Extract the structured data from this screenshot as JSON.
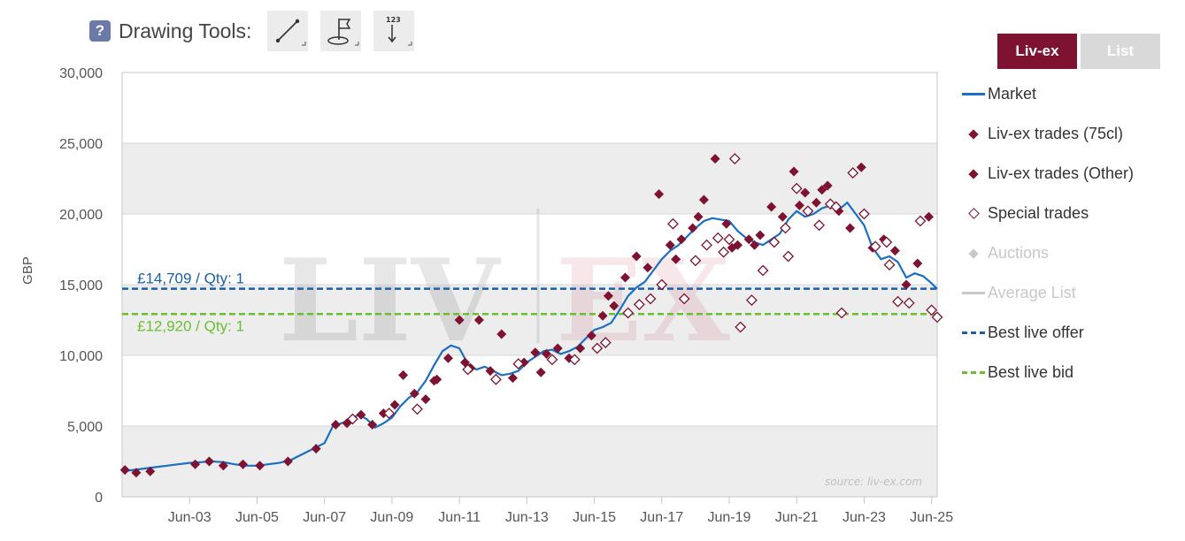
{
  "toolbar": {
    "help_label": "?",
    "label": "Drawing Tools:",
    "tools": [
      {
        "icon": "line-tool-icon"
      },
      {
        "icon": "flag-tool-icon"
      },
      {
        "icon": "label-tool-icon",
        "text": "123"
      }
    ]
  },
  "view_toggle": {
    "active": "Liv-ex",
    "inactive": "List"
  },
  "legend": [
    {
      "label": "Market",
      "symbol": "line",
      "color": "#1a6fc4",
      "enabled": true
    },
    {
      "label": "Liv-ex trades (75cl)",
      "symbol": "diamond-filled",
      "color": "#7d1330",
      "enabled": true
    },
    {
      "label": "Liv-ex trades (Other)",
      "symbol": "diamond-filled",
      "color": "#7d1330",
      "enabled": true
    },
    {
      "label": "Special trades",
      "symbol": "diamond-hollow",
      "color": "#7d1330",
      "enabled": true
    },
    {
      "label": "Auctions",
      "symbol": "diamond-grey",
      "color": "#c8c8c8",
      "enabled": false
    },
    {
      "label": "Average List",
      "symbol": "line",
      "color": "#c8c8c8",
      "enabled": false
    },
    {
      "label": "Best live offer",
      "symbol": "dash",
      "color": "#1a5fa8",
      "enabled": true
    },
    {
      "label": "Best live bid",
      "symbol": "dash",
      "color": "#6abf2e",
      "enabled": true
    }
  ],
  "chart_data": {
    "type": "line",
    "ylabel": "GBP",
    "ylim": [
      0,
      30000
    ],
    "yticks": [
      0,
      5000,
      10000,
      15000,
      20000,
      25000,
      30000
    ],
    "ytick_labels": [
      "0",
      "5,000",
      "10,000",
      "15,000",
      "20,000",
      "25,000",
      "30,000"
    ],
    "xlim": [
      "2001-06",
      "2025-08"
    ],
    "xticks": [
      "2003-06",
      "2005-06",
      "2007-06",
      "2009-06",
      "2011-06",
      "2013-06",
      "2015-06",
      "2017-06",
      "2019-06",
      "2021-06",
      "2023-06",
      "2025-06"
    ],
    "xtick_labels": [
      "Jun-03",
      "Jun-05",
      "Jun-07",
      "Jun-09",
      "Jun-11",
      "Jun-13",
      "Jun-15",
      "Jun-17",
      "Jun-19",
      "Jun-21",
      "Jun-23",
      "Jun-25"
    ],
    "grid": true,
    "watermark": "LIV-EX",
    "source_note": "source: liv-ex.com",
    "colors": {
      "market": "#1a6fc4",
      "trade": "#7d1330",
      "offer": "#1a5fa8",
      "bid": "#6abf2e"
    },
    "reference_lines": [
      {
        "name": "Best live offer",
        "value": 14709,
        "label": "£14,709 / Qty: 1",
        "color": "#1a5fa8"
      },
      {
        "name": "Best live bid",
        "value": 12920,
        "label": "£12,920 / Qty: 1",
        "color": "#6abf2e"
      }
    ],
    "market": {
      "x": [
        "2001-06",
        "2001-10",
        "2002-02",
        "2002-06",
        "2002-10",
        "2003-02",
        "2003-06",
        "2003-10",
        "2004-02",
        "2004-06",
        "2004-10",
        "2005-02",
        "2005-06",
        "2005-10",
        "2006-02",
        "2006-06",
        "2006-10",
        "2007-02",
        "2007-06",
        "2007-09",
        "2007-12",
        "2008-03",
        "2008-06",
        "2008-09",
        "2008-12",
        "2009-03",
        "2009-06",
        "2009-09",
        "2009-12",
        "2010-03",
        "2010-06",
        "2010-09",
        "2010-12",
        "2011-03",
        "2011-06",
        "2011-09",
        "2011-12",
        "2012-03",
        "2012-06",
        "2012-09",
        "2012-12",
        "2013-03",
        "2013-06",
        "2013-09",
        "2013-12",
        "2014-03",
        "2014-06",
        "2014-09",
        "2014-12",
        "2015-03",
        "2015-06",
        "2015-09",
        "2015-12",
        "2016-03",
        "2016-06",
        "2016-09",
        "2016-12",
        "2017-03",
        "2017-06",
        "2017-09",
        "2017-12",
        "2018-03",
        "2018-06",
        "2018-09",
        "2018-12",
        "2019-03",
        "2019-06",
        "2019-09",
        "2019-12",
        "2020-03",
        "2020-06",
        "2020-09",
        "2020-12",
        "2021-03",
        "2021-06",
        "2021-09",
        "2021-12",
        "2022-03",
        "2022-06",
        "2022-09",
        "2022-12",
        "2023-03",
        "2023-06",
        "2023-09",
        "2023-12",
        "2024-03",
        "2024-06",
        "2024-09",
        "2024-12",
        "2025-03",
        "2025-06",
        "2025-08"
      ],
      "values": [
        1800,
        1900,
        2000,
        2100,
        2200,
        2300,
        2400,
        2450,
        2500,
        2450,
        2300,
        2200,
        2200,
        2300,
        2400,
        2600,
        3000,
        3400,
        3800,
        5000,
        5200,
        5400,
        5800,
        5500,
        4900,
        5200,
        5600,
        6400,
        7000,
        7400,
        8200,
        9300,
        10300,
        10700,
        10500,
        9400,
        9000,
        9200,
        8900,
        8600,
        8700,
        8900,
        9500,
        9900,
        10300,
        10400,
        10100,
        10300,
        10600,
        11200,
        11800,
        12000,
        12300,
        13200,
        14200,
        14800,
        15200,
        16000,
        16800,
        17400,
        17800,
        18400,
        19000,
        19500,
        19700,
        19600,
        19500,
        18800,
        18300,
        18000,
        17800,
        18200,
        18600,
        19600,
        20200,
        19800,
        20000,
        20400,
        20600,
        20300,
        20800,
        20000,
        19200,
        17600,
        16800,
        17000,
        16600,
        15500,
        15800,
        15600,
        15100,
        14700
      ]
    },
    "trades_filled": {
      "x": [
        "2001-07",
        "2001-11",
        "2002-04",
        "2003-08",
        "2004-01",
        "2004-06",
        "2005-01",
        "2005-07",
        "2006-05",
        "2007-03",
        "2007-10",
        "2008-02",
        "2008-07",
        "2008-11",
        "2009-03",
        "2009-07",
        "2009-10",
        "2010-02",
        "2010-06",
        "2010-10",
        "2011-02",
        "2011-06",
        "2011-10",
        "2012-01",
        "2012-05",
        "2012-09",
        "2013-01",
        "2013-05",
        "2013-09",
        "2014-01",
        "2014-05",
        "2014-09",
        "2015-01",
        "2015-05",
        "2015-09",
        "2016-01",
        "2016-05",
        "2016-09",
        "2017-01",
        "2017-05",
        "2017-09",
        "2018-01",
        "2018-05",
        "2018-09",
        "2019-01",
        "2019-05",
        "2019-09",
        "2020-01",
        "2020-05",
        "2020-09",
        "2021-01",
        "2021-05",
        "2021-09",
        "2022-01",
        "2022-05",
        "2022-09",
        "2023-01",
        "2023-05",
        "2023-09",
        "2024-01",
        "2024-05",
        "2024-09",
        "2025-01",
        "2025-05",
        "2010-09",
        "2011-08",
        "2013-11",
        "2015-11",
        "2017-11",
        "2018-07",
        "2019-07",
        "2020-03",
        "2021-07",
        "2022-03"
      ],
      "values": [
        1900,
        1700,
        1800,
        2300,
        2500,
        2200,
        2300,
        2200,
        2500,
        3400,
        5100,
        5200,
        5800,
        5100,
        5900,
        6500,
        8600,
        7300,
        6900,
        8300,
        9800,
        12500,
        9100,
        12500,
        8900,
        11500,
        8400,
        9500,
        10200,
        10100,
        10500,
        9800,
        10500,
        11400,
        12800,
        13500,
        15500,
        17000,
        16200,
        21400,
        17800,
        18200,
        19000,
        21000,
        23900,
        19300,
        17800,
        18200,
        18500,
        20500,
        19800,
        23000,
        21500,
        20800,
        22000,
        20200,
        19000,
        23300,
        17600,
        18200,
        17400,
        15000,
        16500,
        19800,
        8200,
        9500,
        8800,
        14200,
        16800,
        19800,
        17600,
        17800,
        20600,
        21700
      ]
    },
    "trades_hollow": {
      "x": [
        "2008-04",
        "2009-05",
        "2010-03",
        "2011-09",
        "2012-07",
        "2013-03",
        "2014-03",
        "2014-11",
        "2015-07",
        "2015-10",
        "2016-06",
        "2016-10",
        "2017-02",
        "2017-06",
        "2017-10",
        "2018-02",
        "2018-06",
        "2018-10",
        "2019-02",
        "2019-06",
        "2019-10",
        "2020-02",
        "2020-06",
        "2020-10",
        "2021-02",
        "2021-06",
        "2021-10",
        "2022-02",
        "2022-06",
        "2022-10",
        "2023-02",
        "2023-06",
        "2023-10",
        "2024-02",
        "2024-06",
        "2024-10",
        "2025-02",
        "2025-06",
        "2025-08",
        "2019-04",
        "2019-08",
        "2021-03",
        "2022-08",
        "2024-03"
      ],
      "values": [
        5500,
        5900,
        6200,
        9000,
        8300,
        9400,
        9700,
        9700,
        10500,
        10900,
        13000,
        13600,
        14000,
        15000,
        19300,
        14000,
        16700,
        17800,
        18300,
        18200,
        12000,
        13900,
        16000,
        18000,
        19000,
        21800,
        20200,
        19200,
        20700,
        13000,
        22900,
        20000,
        17700,
        18000,
        13800,
        13700,
        19500,
        13200,
        12700,
        17300,
        23900,
        17000,
        20500,
        16400
      ]
    }
  }
}
